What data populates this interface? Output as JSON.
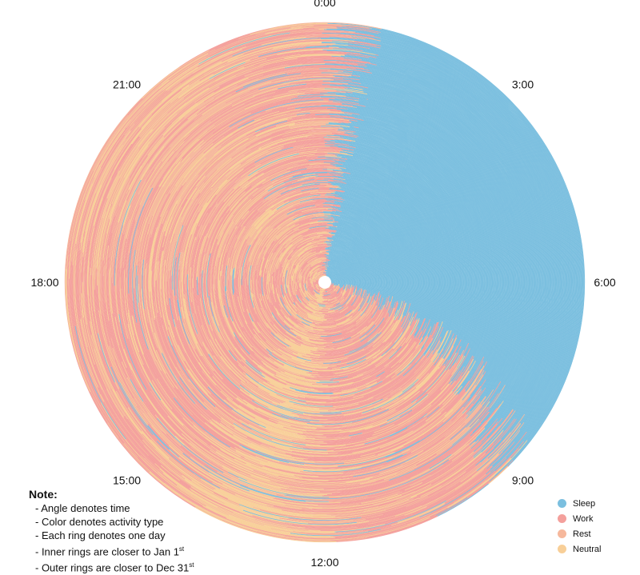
{
  "chart_data": {
    "type": "radial-heatmap",
    "angle_ticks": [
      "0:00",
      "3:00",
      "6:00",
      "9:00",
      "12:00",
      "15:00",
      "18:00",
      "21:00"
    ],
    "categories": [
      {
        "name": "Sleep",
        "color": "#7bbfdf"
      },
      {
        "name": "Work",
        "color": "#f4a09c"
      },
      {
        "name": "Rest",
        "color": "#f6b89c"
      },
      {
        "name": "Neutral",
        "color": "#f8cf98"
      }
    ],
    "rings": 365,
    "legend_placement": "bottom-right",
    "typical_day_hours": [
      {
        "activity": "Sleep",
        "start": 0.5,
        "end": 7.5,
        "note": "outer rings extend to ~9:00"
      },
      {
        "activity": "Work",
        "start": 7.5,
        "end": 12.0
      },
      {
        "activity": "Neutral",
        "start": 12.0,
        "end": 13.0
      },
      {
        "activity": "Work",
        "start": 13.0,
        "end": 18.0
      },
      {
        "activity": "Rest",
        "start": 18.0,
        "end": 21.0
      },
      {
        "activity": "Work",
        "start": 21.0,
        "end": 24.5
      }
    ]
  },
  "note": {
    "title": "Note:",
    "lines": [
      {
        "text": "- Angle denotes time",
        "sup": ""
      },
      {
        "text": "- Color denotes activity type",
        "sup": ""
      },
      {
        "text": "- Each ring denotes one day",
        "sup": ""
      },
      {
        "text": "- Inner rings are closer to Jan 1",
        "sup": "st"
      },
      {
        "text": "- Outer rings are closer to Dec 31",
        "sup": "st"
      }
    ]
  }
}
